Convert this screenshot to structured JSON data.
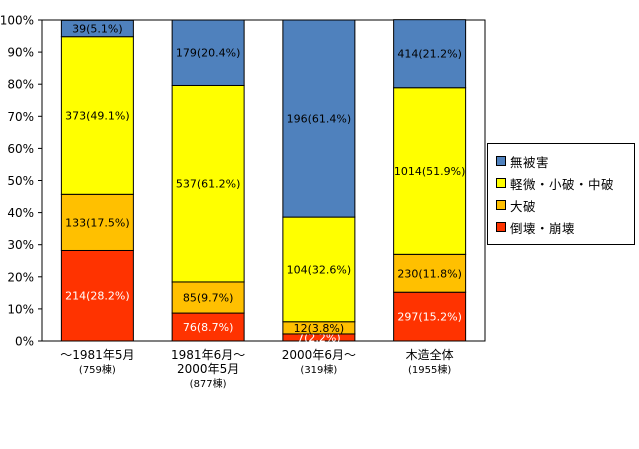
{
  "chart_data": {
    "type": "bar",
    "stacked": true,
    "normalized": true,
    "ylim": [
      0,
      100
    ],
    "yticks": [
      "0%",
      "10%",
      "20%",
      "30%",
      "40%",
      "50%",
      "60%",
      "70%",
      "80%",
      "90%",
      "100%"
    ],
    "grid": false,
    "legend_position": "right",
    "categories": [
      {
        "label": "～1981年5月",
        "sublabel": "(759棟)"
      },
      {
        "label": "1981年6月～",
        "label2": "2000年5月",
        "sublabel": "(877棟)"
      },
      {
        "label": "2000年6月～",
        "sublabel": "(319棟)"
      },
      {
        "label": "木造全体",
        "sublabel": "(1955棟)"
      }
    ],
    "series": [
      {
        "name": "倒壊・崩壊",
        "color": "#ff3300",
        "label_color": "#ffffff",
        "values": [
          28.2,
          8.7,
          2.2,
          15.2
        ],
        "labels": [
          "214(28.2%)",
          "76(8.7%)",
          "7(2.2%)",
          "297(15.2%)"
        ]
      },
      {
        "name": "大破",
        "color": "#ffc000",
        "label_color": "#000000",
        "values": [
          17.5,
          9.7,
          3.8,
          11.8
        ],
        "labels": [
          "133(17.5%)",
          "85(9.7%)",
          "12(3.8%)",
          "230(11.8%)"
        ]
      },
      {
        "name": "軽微・小破・中破",
        "color": "#ffff00",
        "label_color": "#000000",
        "values": [
          49.1,
          61.2,
          32.6,
          51.9
        ],
        "labels": [
          "373(49.1%)",
          "537(61.2%)",
          "104(32.6%)",
          "1014(51.9%)"
        ]
      },
      {
        "name": "無被害",
        "color": "#4f81bd",
        "label_color": "#000000",
        "values": [
          5.1,
          20.4,
          61.4,
          21.2
        ],
        "labels": [
          "39(5.1%)",
          "179(20.4%)",
          "196(61.4%)",
          "414(21.2%)"
        ]
      }
    ],
    "legend_order": [
      "無被害",
      "軽微・小破・中破",
      "大破",
      "倒壊・崩壊"
    ]
  }
}
